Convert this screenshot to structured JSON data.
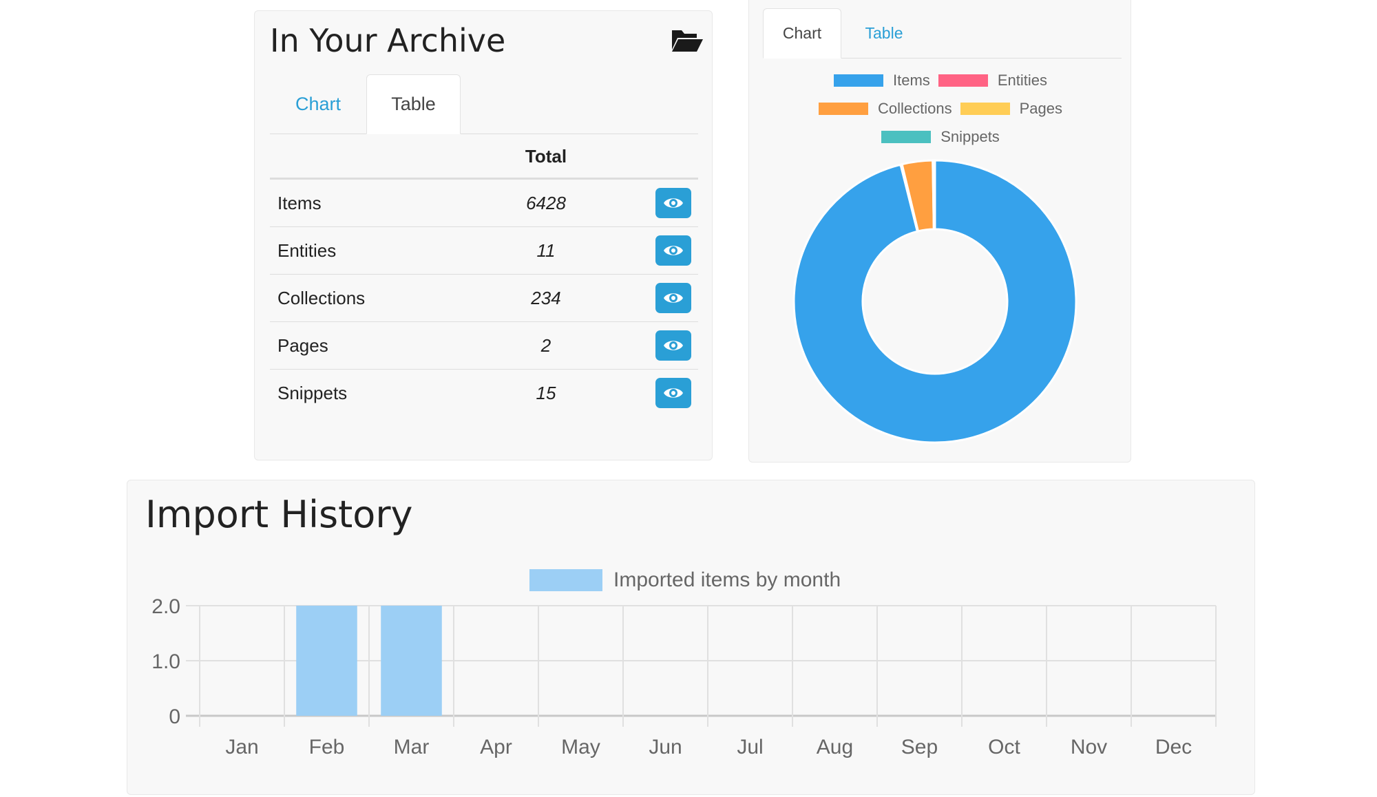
{
  "archive": {
    "title": "In Your Archive",
    "icon": "folder-open-icon",
    "tabs": [
      {
        "label": "Chart",
        "active": false
      },
      {
        "label": "Table",
        "active": true
      }
    ],
    "table": {
      "header": "Total",
      "rows": [
        {
          "label": "Items",
          "value": "6428"
        },
        {
          "label": "Entities",
          "value": "11"
        },
        {
          "label": "Collections",
          "value": "234"
        },
        {
          "label": "Pages",
          "value": "2"
        },
        {
          "label": "Snippets",
          "value": "15"
        }
      ],
      "action_icon": "eye-icon"
    },
    "accent_color": "#2a9fd6"
  },
  "archive_chart": {
    "tabs": [
      {
        "label": "Chart",
        "active": true
      },
      {
        "label": "Table",
        "active": false
      }
    ]
  },
  "import_history": {
    "title": "Import History"
  },
  "chart_data": [
    {
      "type": "pie",
      "subtype": "doughnut",
      "legend_position": "top",
      "series": [
        {
          "name": "Items",
          "value": 6428,
          "color": "#36a2eb"
        },
        {
          "name": "Entities",
          "value": 11,
          "color": "#ff6384"
        },
        {
          "name": "Collections",
          "value": 234,
          "color": "#ff9f40"
        },
        {
          "name": "Pages",
          "value": 2,
          "color": "#ffcd56"
        },
        {
          "name": "Snippets",
          "value": 15,
          "color": "#4bc0c0"
        }
      ]
    },
    {
      "type": "bar",
      "legend_position": "top",
      "categories": [
        "Jan",
        "Feb",
        "Mar",
        "Apr",
        "May",
        "Jun",
        "Jul",
        "Aug",
        "Sep",
        "Oct",
        "Nov",
        "Dec"
      ],
      "series": [
        {
          "name": "Imported items by month",
          "values": [
            0,
            2,
            2,
            0,
            0,
            0,
            0,
            0,
            0,
            0,
            0,
            0
          ],
          "color": "#9ccff5"
        }
      ],
      "yticks": [
        "0",
        "1.0",
        "2.0"
      ],
      "ylim": [
        0,
        2
      ],
      "grid": true
    }
  ]
}
